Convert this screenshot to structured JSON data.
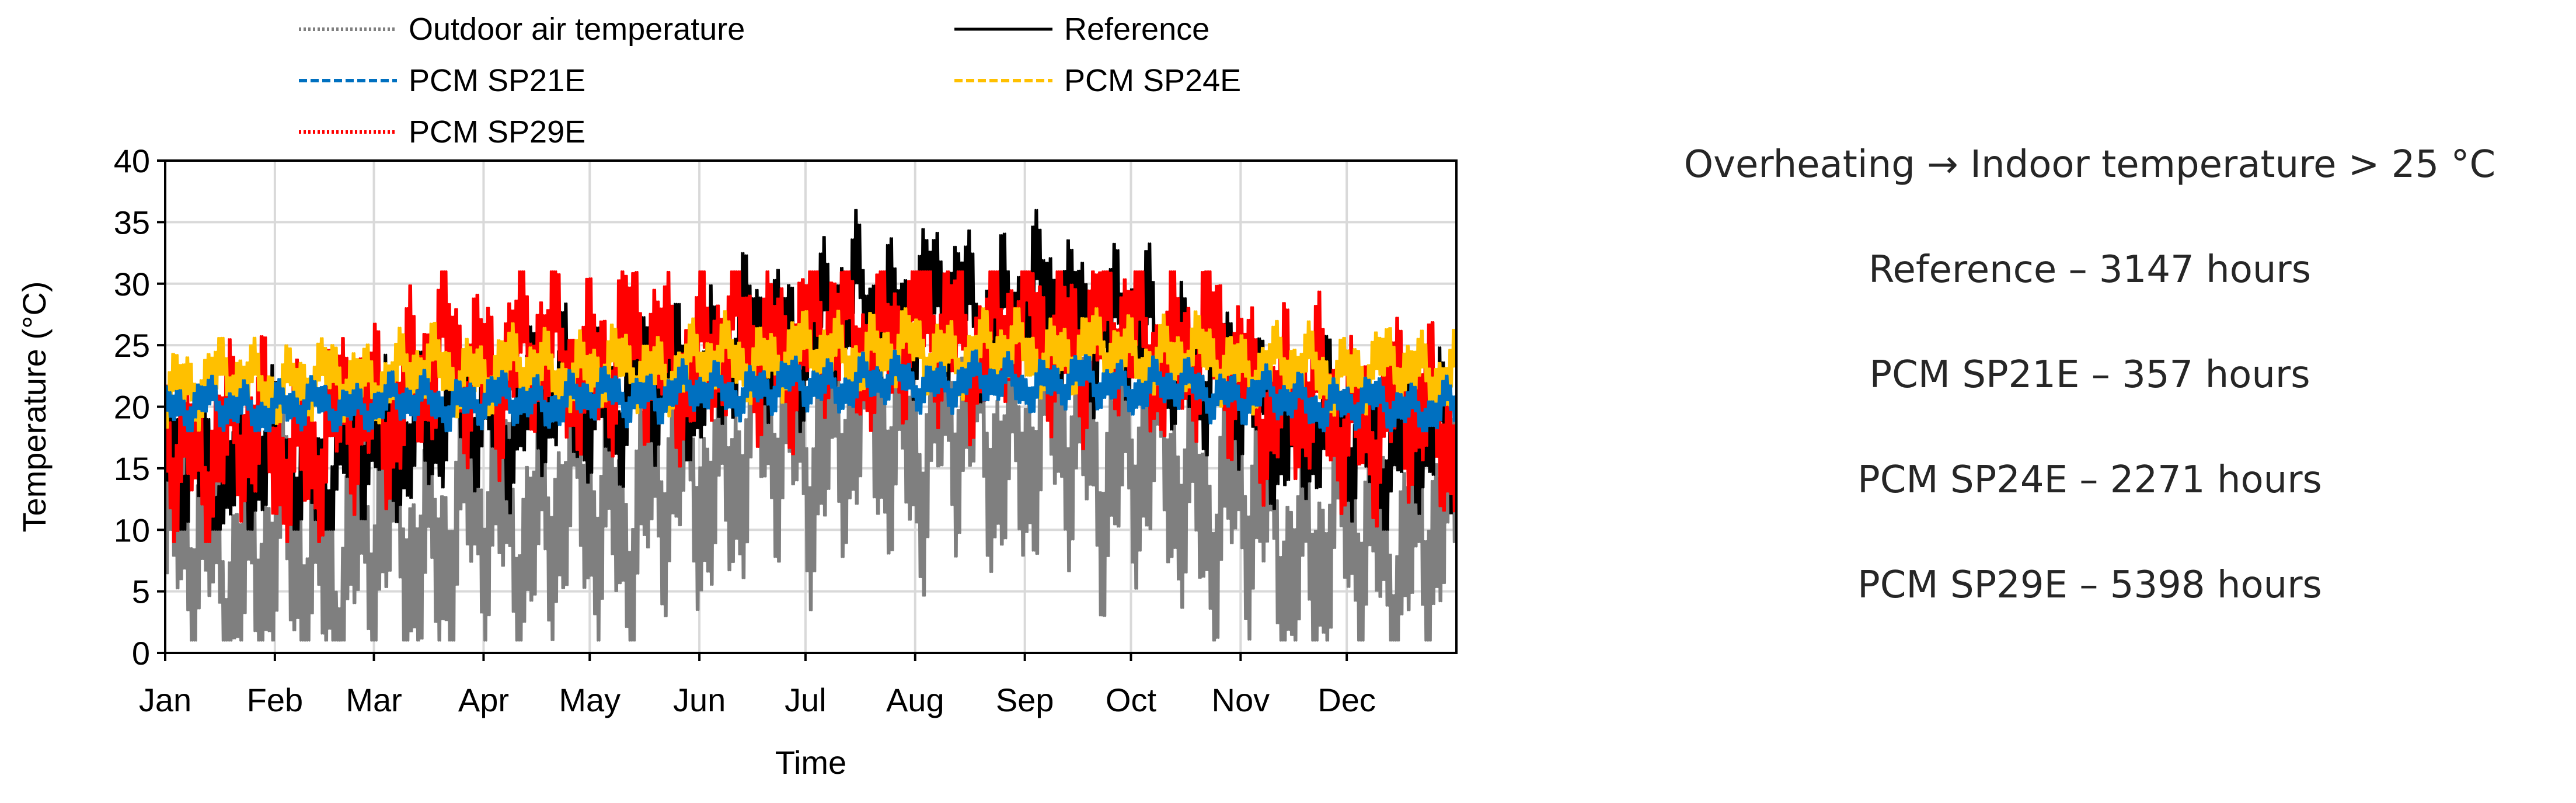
{
  "chart_data": {
    "type": "line",
    "xlabel": "Time",
    "ylabel": "Temperature (°C)",
    "ylim": [
      0,
      40
    ],
    "yticks": [
      0,
      5,
      10,
      15,
      20,
      25,
      30,
      35,
      40
    ],
    "xlim_day": [
      0,
      365
    ],
    "categories": [
      "Jan",
      "Feb",
      "Mar",
      "Apr",
      "May",
      "Jun",
      "Jul",
      "Aug",
      "Sep",
      "Oct",
      "Nov",
      "Dec"
    ],
    "month_start_day": [
      0,
      31,
      59,
      90,
      120,
      151,
      181,
      212,
      243,
      273,
      304,
      334
    ],
    "grid": true,
    "legend": [
      {
        "name": "Outdoor air temperature",
        "color": "#7f7f7f",
        "style": "dotted"
      },
      {
        "name": "Reference",
        "color": "#000000",
        "style": "solid"
      },
      {
        "name": "PCM SP21E",
        "color": "#0070c0",
        "style": "dashed"
      },
      {
        "name": "PCM SP24E",
        "color": "#ffc000",
        "style": "dashed"
      },
      {
        "name": "PCM SP29E",
        "color": "#ff0000",
        "style": "dotted"
      }
    ],
    "series": [
      {
        "name": "Outdoor air temperature",
        "color": "#7f7f7f",
        "monthly_mean": [
          8,
          7,
          10,
          11,
          12,
          17,
          18,
          18,
          17,
          14,
          9,
          9
        ],
        "daily_range": 10,
        "min_approx": 1,
        "max_approx": 24
      },
      {
        "name": "Reference",
        "color": "#000000",
        "monthly_mean": [
          15,
          15,
          19,
          20,
          21,
          25,
          28,
          28,
          28,
          24,
          18,
          17
        ],
        "daily_range": 6,
        "min_approx": 10,
        "max_approx": 36
      },
      {
        "name": "PCM SP29E",
        "color": "#ff0000",
        "monthly_mean": [
          17,
          17,
          23,
          24,
          24,
          25,
          26,
          26,
          26,
          25,
          20,
          19
        ],
        "daily_range": 7,
        "min_approx": 9,
        "max_approx": 31
      },
      {
        "name": "PCM SP24E",
        "color": "#ffc000",
        "monthly_mean": [
          22,
          22,
          23,
          23,
          23,
          24,
          24.5,
          24.5,
          24.5,
          24,
          23,
          23
        ],
        "daily_range": 3,
        "min_approx": 18,
        "max_approx": 28
      },
      {
        "name": "PCM SP21E",
        "color": "#0070c0",
        "monthly_mean": [
          20,
          20,
          20.5,
          20.5,
          21,
          21.5,
          22,
          22,
          22,
          21.5,
          20.5,
          20
        ],
        "daily_range": 2,
        "min_approx": 18,
        "max_approx": 25
      }
    ]
  },
  "info_panel": {
    "title": "Overheating → Indoor temperature > 25 °C",
    "lines": [
      "Reference – 3147 hours",
      "PCM SP21E – 357 hours",
      "PCM SP24E – 2271 hours",
      "PCM SP29E – 5398 hours"
    ]
  }
}
